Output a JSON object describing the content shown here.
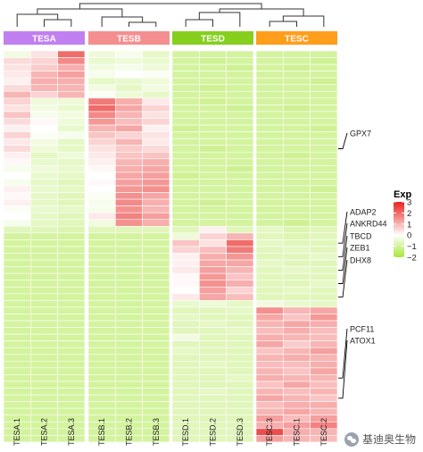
{
  "chart_data": {
    "type": "heatmap",
    "columns": [
      "TESA.1",
      "TESA.2",
      "TESA.3",
      "TESB.1",
      "TESB.2",
      "TESB.3",
      "TESD.1",
      "TESD.2",
      "TESD.3",
      "TESC.3",
      "TESC.1",
      "TESC.2"
    ],
    "groups": [
      {
        "name": "TESA",
        "color": "#c080f0",
        "span": 3
      },
      {
        "name": "TESB",
        "color": "#f58f8f",
        "span": 3
      },
      {
        "name": "TESD",
        "color": "#86cf1e",
        "span": 3
      },
      {
        "name": "TESC",
        "color": "#ff9e1b",
        "span": 3
      }
    ],
    "legend": {
      "title": "Exp",
      "ticks": [
        3,
        2,
        1,
        0,
        -1,
        -2
      ],
      "min": -2,
      "max": 3,
      "colors": {
        "high": "#e8221f",
        "mid": "#ffffff",
        "low": "#a8e63c"
      }
    },
    "row_labels": [
      {
        "row": 14,
        "text": "GPX7"
      },
      {
        "row": 28,
        "text": "ADAP2"
      },
      {
        "row": 30,
        "text": "ANKRD44"
      },
      {
        "row": 32,
        "text": "TBCD"
      },
      {
        "row": 34,
        "text": "ZEB1"
      },
      {
        "row": 36,
        "text": "DHX8"
      },
      {
        "row": 48,
        "text": "PCF11"
      },
      {
        "row": 51,
        "text": "ATOX1"
      }
    ],
    "values": [
      [
        -0.3,
        0.4,
        2.0,
        -0.4,
        -0.2,
        -0.6,
        -1.0,
        -1.0,
        -1.0,
        -1.0,
        -1.0,
        -1.0
      ],
      [
        0.5,
        0.6,
        1.6,
        -0.5,
        -0.4,
        -0.5,
        -1.0,
        -1.1,
        -1.0,
        -1.0,
        -1.0,
        -1.1
      ],
      [
        0.4,
        0.7,
        1.1,
        -0.3,
        -0.2,
        -0.4,
        -1.0,
        -1.0,
        -1.1,
        -1.0,
        -1.1,
        -1.0
      ],
      [
        0.3,
        1.0,
        1.3,
        -0.2,
        0.0,
        -0.1,
        -1.0,
        -1.0,
        -1.0,
        -1.0,
        -1.0,
        -1.0
      ],
      [
        0.2,
        1.1,
        1.1,
        -0.6,
        -0.5,
        -0.4,
        -1.0,
        -1.0,
        -1.0,
        -1.0,
        -1.0,
        -1.1
      ],
      [
        0.5,
        1.0,
        1.0,
        -0.3,
        -0.6,
        -0.3,
        -1.0,
        -1.1,
        -1.0,
        -1.0,
        -1.0,
        -1.0
      ],
      [
        1.0,
        0.6,
        1.0,
        -0.1,
        -0.4,
        -0.6,
        -1.0,
        -1.0,
        -1.0,
        -1.0,
        -1.0,
        -1.0
      ],
      [
        0.6,
        -0.4,
        -0.4,
        1.8,
        1.1,
        0.3,
        -1.0,
        -1.1,
        -1.0,
        -1.0,
        -1.0,
        -1.0
      ],
      [
        0.4,
        -0.3,
        -0.5,
        2.0,
        1.2,
        0.6,
        -1.0,
        -1.0,
        -1.1,
        -1.0,
        -1.1,
        -1.0
      ],
      [
        0.8,
        -0.2,
        -0.3,
        1.6,
        1.0,
        0.4,
        -1.0,
        -1.0,
        -1.0,
        -1.0,
        -1.0,
        -1.0
      ],
      [
        0.5,
        0.1,
        -0.4,
        1.4,
        0.9,
        0.6,
        -1.0,
        -1.0,
        -1.0,
        -1.0,
        -1.0,
        -1.0
      ],
      [
        0.2,
        0.0,
        -0.5,
        1.0,
        1.2,
        0.2,
        -1.1,
        -1.0,
        -1.0,
        -1.0,
        -1.0,
        -1.1
      ],
      [
        0.6,
        -0.1,
        -0.2,
        0.8,
        0.6,
        0.4,
        -1.0,
        -1.0,
        -1.0,
        -1.0,
        -1.0,
        -1.0
      ],
      [
        0.3,
        -0.3,
        -0.6,
        0.6,
        1.0,
        0.3,
        -1.0,
        -1.0,
        -1.0,
        -1.0,
        -1.0,
        -1.0
      ],
      [
        0.5,
        -0.4,
        -0.6,
        0.4,
        0.7,
        0.5,
        -1.0,
        -1.1,
        -1.0,
        -1.0,
        -1.0,
        -1.0
      ],
      [
        0.2,
        -0.6,
        -0.4,
        0.3,
        0.8,
        0.8,
        -1.0,
        -1.0,
        -1.0,
        -1.0,
        -1.1,
        -1.0
      ],
      [
        0.1,
        -0.5,
        -0.6,
        0.2,
        1.0,
        1.1,
        -1.0,
        -1.0,
        -1.0,
        -1.0,
        -1.0,
        -1.0
      ],
      [
        -0.2,
        -0.4,
        -0.5,
        0.1,
        1.1,
        1.2,
        -1.0,
        -1.0,
        -1.1,
        -1.0,
        -1.0,
        -1.0
      ],
      [
        0.0,
        -0.5,
        -0.6,
        0.0,
        1.2,
        1.3,
        -1.1,
        -1.0,
        -1.0,
        -1.0,
        -1.0,
        -1.0
      ],
      [
        -0.2,
        -0.6,
        -0.7,
        0.1,
        1.3,
        1.4,
        -1.0,
        -1.0,
        -1.0,
        -1.0,
        -1.0,
        -1.0
      ],
      [
        0.2,
        -0.5,
        -0.6,
        0.0,
        1.4,
        1.5,
        -1.0,
        -1.0,
        -1.0,
        -1.0,
        -1.0,
        -1.1
      ],
      [
        0.1,
        -0.6,
        -0.7,
        -0.1,
        1.5,
        1.2,
        -1.0,
        -1.0,
        -1.0,
        -1.0,
        -1.0,
        -1.0
      ],
      [
        0.2,
        -0.6,
        -0.7,
        -0.2,
        1.6,
        1.1,
        -1.0,
        -1.1,
        -1.0,
        -1.0,
        -1.0,
        -1.0
      ],
      [
        -0.1,
        -0.5,
        -0.6,
        -0.2,
        1.5,
        1.0,
        -1.0,
        -1.0,
        -1.0,
        -1.0,
        -1.0,
        -1.0
      ],
      [
        0.0,
        -0.6,
        -0.7,
        0.3,
        1.7,
        1.3,
        -1.0,
        -1.0,
        -1.0,
        -1.0,
        -1.0,
        -1.0
      ],
      [
        -0.2,
        -0.6,
        -0.7,
        -0.3,
        1.5,
        1.1,
        -1.0,
        -1.0,
        -1.0,
        -1.0,
        -1.1,
        -1.0
      ],
      [
        -0.7,
        -0.7,
        -0.8,
        -0.7,
        -0.7,
        -0.7,
        -0.7,
        0.2,
        -0.7,
        -0.6,
        -0.8,
        -0.7
      ],
      [
        -1.0,
        -1.0,
        -1.0,
        -1.0,
        -1.0,
        -1.0,
        -0.4,
        0.6,
        1.0,
        -0.7,
        -0.8,
        -0.7
      ],
      [
        -1.0,
        -1.0,
        -1.0,
        -1.0,
        -1.0,
        -1.0,
        0.8,
        0.4,
        2.0,
        -0.6,
        -0.7,
        -0.7
      ],
      [
        -1.0,
        -1.0,
        -1.0,
        -1.0,
        -1.0,
        -1.0,
        0.6,
        0.9,
        1.8,
        -0.7,
        -0.6,
        -0.7
      ],
      [
        -1.0,
        -1.0,
        -1.0,
        -1.0,
        -1.0,
        -1.0,
        0.2,
        1.1,
        1.4,
        -0.7,
        -0.7,
        -0.6
      ],
      [
        -1.0,
        -1.0,
        -1.0,
        -1.0,
        -1.0,
        -1.0,
        0.2,
        1.2,
        1.2,
        -0.6,
        -0.7,
        -0.7
      ],
      [
        -1.0,
        -1.0,
        -1.0,
        -1.0,
        -1.0,
        -1.0,
        0.3,
        1.3,
        1.0,
        -0.7,
        -0.6,
        -0.7
      ],
      [
        -1.0,
        -1.0,
        -1.0,
        -1.0,
        -1.0,
        -1.0,
        0.1,
        1.4,
        0.8,
        -0.7,
        -0.7,
        -0.7
      ],
      [
        -1.0,
        -1.0,
        -1.0,
        -1.0,
        -1.0,
        -1.0,
        0.1,
        1.5,
        1.1,
        -0.7,
        -0.7,
        -0.6
      ],
      [
        -1.0,
        -1.0,
        -1.0,
        -1.0,
        -1.0,
        -1.0,
        0.0,
        1.3,
        0.6,
        -0.7,
        -0.6,
        -0.7
      ],
      [
        -1.0,
        -1.0,
        -1.0,
        -1.0,
        -1.0,
        -1.0,
        0.3,
        1.2,
        0.9,
        -0.7,
        -0.7,
        -0.7
      ],
      [
        -1.0,
        -1.0,
        -1.0,
        -1.0,
        -1.0,
        -1.0,
        -0.5,
        -0.4,
        -0.6,
        -0.3,
        -0.5,
        -0.6
      ],
      [
        -1.0,
        -1.0,
        -1.0,
        -1.0,
        -1.0,
        -1.0,
        -0.7,
        -0.7,
        -0.6,
        1.5,
        1.0,
        1.2
      ],
      [
        -1.0,
        -1.0,
        -1.0,
        -1.0,
        -1.0,
        -1.0,
        -0.6,
        -0.7,
        -0.7,
        1.2,
        0.8,
        1.4
      ],
      [
        -1.0,
        -1.0,
        -1.0,
        -1.0,
        -1.0,
        -1.0,
        -0.7,
        -0.6,
        -0.7,
        1.0,
        1.2,
        1.1
      ],
      [
        -1.0,
        -1.0,
        -1.0,
        -1.0,
        -1.0,
        -1.0,
        -0.7,
        -0.7,
        -0.6,
        0.9,
        1.1,
        0.9
      ],
      [
        -1.0,
        -1.0,
        -1.0,
        -1.0,
        -1.0,
        -1.0,
        -0.3,
        -0.7,
        -0.7,
        1.1,
        1.0,
        0.9
      ],
      [
        -1.0,
        -1.0,
        -1.0,
        -1.0,
        -1.0,
        -1.0,
        -0.7,
        -0.7,
        -0.7,
        1.2,
        0.7,
        1.0
      ],
      [
        -1.0,
        -1.0,
        -1.0,
        -1.0,
        -1.0,
        -1.0,
        -0.6,
        -0.7,
        -0.7,
        0.8,
        1.0,
        1.3
      ],
      [
        -1.0,
        -1.0,
        -1.0,
        -1.0,
        -1.0,
        -1.0,
        -0.7,
        -0.7,
        -0.7,
        1.0,
        1.1,
        1.0
      ],
      [
        -1.0,
        -1.0,
        -1.0,
        -1.0,
        -1.0,
        -1.0,
        -0.7,
        -0.6,
        -0.7,
        0.9,
        0.9,
        1.1
      ],
      [
        -1.0,
        -1.0,
        -1.0,
        -1.0,
        -1.0,
        -1.0,
        -0.7,
        -0.7,
        -0.7,
        1.0,
        0.8,
        1.2
      ],
      [
        -1.0,
        -1.0,
        -1.0,
        -1.0,
        -1.0,
        -1.0,
        -0.7,
        -0.7,
        -0.6,
        1.1,
        1.0,
        1.0
      ],
      [
        -1.0,
        -1.0,
        -1.0,
        -1.0,
        -1.0,
        -1.0,
        -0.7,
        -0.7,
        -0.7,
        0.8,
        1.2,
        0.9
      ],
      [
        -1.0,
        -1.0,
        -1.0,
        -1.0,
        -1.0,
        -1.0,
        -0.7,
        -0.6,
        -0.7,
        1.0,
        0.9,
        1.0
      ],
      [
        -1.0,
        -1.0,
        -1.0,
        -1.0,
        -1.0,
        -1.0,
        -0.7,
        -0.7,
        -0.7,
        1.2,
        1.0,
        0.8
      ],
      [
        -1.0,
        -1.0,
        -1.0,
        -1.0,
        -1.0,
        -1.0,
        -0.7,
        -0.7,
        -0.7,
        0.9,
        1.1,
        1.1
      ],
      [
        -1.0,
        -1.0,
        -1.0,
        -1.0,
        -1.0,
        -1.0,
        -0.7,
        -0.7,
        -0.7,
        1.0,
        1.2,
        1.0
      ],
      [
        -1.0,
        -1.0,
        -1.0,
        -1.0,
        -1.0,
        -1.0,
        -0.7,
        -0.7,
        -0.7,
        1.3,
        0.9,
        1.3
      ],
      [
        -1.0,
        -1.0,
        -1.0,
        -1.0,
        -1.0,
        -1.0,
        -0.7,
        -0.7,
        -0.7,
        1.1,
        1.3,
        1.7
      ],
      [
        -1.0,
        -1.0,
        -1.0,
        -1.0,
        -1.0,
        -1.0,
        -0.7,
        -0.7,
        -0.7,
        2.4,
        1.1,
        1.0
      ],
      [
        -1.0,
        -1.0,
        -1.0,
        -1.0,
        -1.0,
        -1.0,
        -0.7,
        -0.7,
        -0.7,
        1.3,
        1.0,
        0.9
      ]
    ]
  },
  "watermark": {
    "text": "基迪奥生物",
    "icon": "wechat-icon"
  }
}
